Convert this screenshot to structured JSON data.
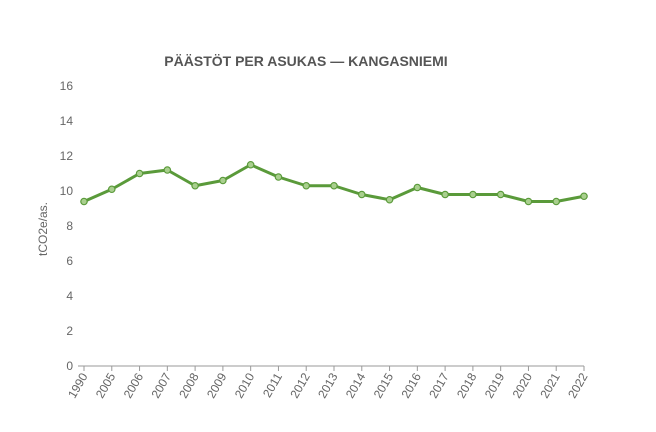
{
  "chart_data": {
    "type": "line",
    "title": "PÄÄSTÖT PER ASUKAS — KANGASNIEMI",
    "xlabel": "",
    "ylabel": "tCO2e/as.",
    "ylim": [
      0,
      16
    ],
    "yticks": [
      "0",
      "2",
      "4",
      "6",
      "8",
      "10",
      "12",
      "14",
      "16"
    ],
    "categories": [
      "1990",
      "2005",
      "2006",
      "2007",
      "2008",
      "2009",
      "2010",
      "2011",
      "2012",
      "2013",
      "2014",
      "2015",
      "2016",
      "2017",
      "2018",
      "2019",
      "2020",
      "2021",
      "2022"
    ],
    "series": [
      {
        "values": [
          9.4,
          10.1,
          11.0,
          11.2,
          10.3,
          10.6,
          11.5,
          10.8,
          10.3,
          10.3,
          9.8,
          9.5,
          10.2,
          9.8,
          9.8,
          9.8,
          9.4,
          9.4,
          9.7
        ],
        "color": "#5a9a3a",
        "marker_fill": "#a9cf8e"
      }
    ],
    "grid": false,
    "legend": "none"
  }
}
